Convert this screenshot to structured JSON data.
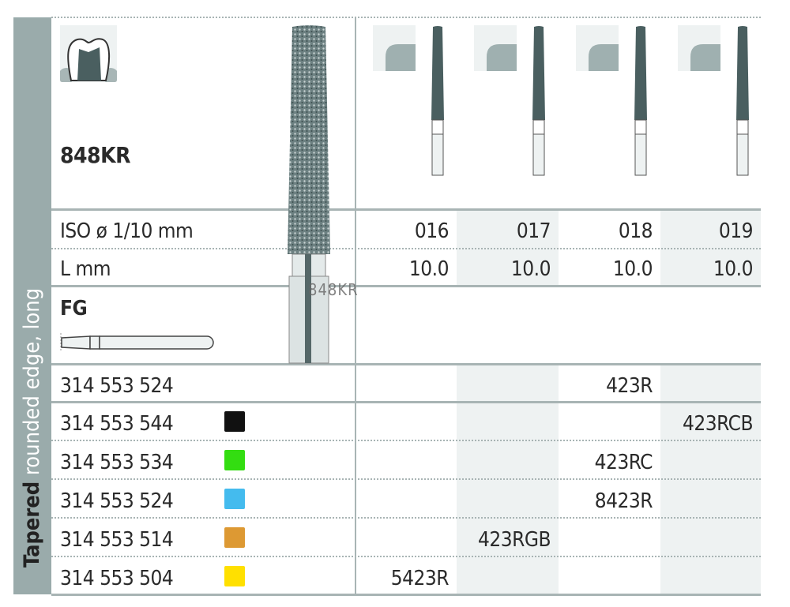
{
  "category": {
    "bold": "Tapered",
    "light": "rounded edge, long"
  },
  "product": {
    "code": "848KR",
    "shank_type": "FG",
    "overlay_text": "848KR"
  },
  "rows_labels": {
    "iso": "ISO ø 1/10 mm",
    "length": "L mm"
  },
  "sizes": [
    {
      "iso": "016",
      "length": "10.0"
    },
    {
      "iso": "017",
      "length": "10.0"
    },
    {
      "iso": "018",
      "length": "10.0"
    },
    {
      "iso": "019",
      "length": "10.0"
    }
  ],
  "order_rows": [
    {
      "ref": "314 553 524",
      "swatch": null,
      "column": 3,
      "value": "423R"
    },
    {
      "ref": "314 553 544",
      "swatch": "#111111",
      "column": 4,
      "value": "423RCB"
    },
    {
      "ref": "314 553 534",
      "swatch": "#33dd11",
      "column": 3,
      "value": "423RC"
    },
    {
      "ref": "314 553 524",
      "swatch": "#44bbee",
      "column": 3,
      "value": "8423R"
    },
    {
      "ref": "314 553 514",
      "swatch": "#dd9933",
      "column": 2,
      "value": "423RGB"
    },
    {
      "ref": "314 553 504",
      "swatch": "#ffe000",
      "column": 1,
      "value": "5423R"
    }
  ],
  "colors": {
    "sidebar": "#9aabab",
    "bur": "#4a5f60",
    "shade": "#eef2f2"
  }
}
